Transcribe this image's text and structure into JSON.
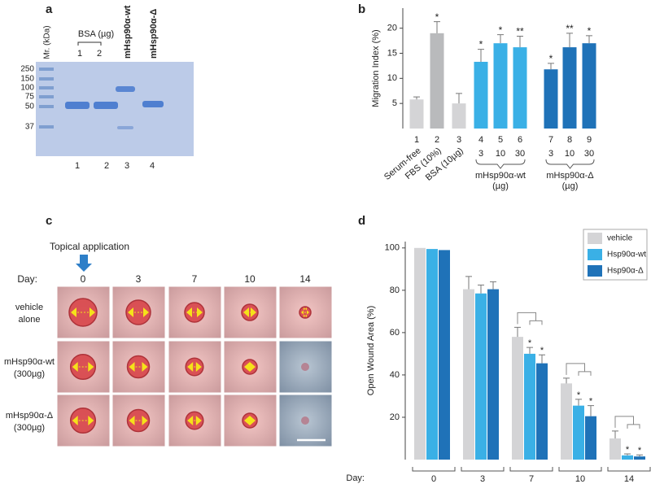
{
  "panel_a": {
    "letter": "a",
    "marker_label": "Mr. (kDa)",
    "markers": [
      250,
      150,
      100,
      75,
      50,
      37
    ],
    "bsa_label": "BSA (µg)",
    "bsa_amounts": [
      "1",
      "2"
    ],
    "lanes": [
      {
        "name": "mHsp90α-wt",
        "color": "#29a8e0"
      },
      {
        "name": "mHsp90α-Δ",
        "color": "#1e6db3"
      }
    ],
    "lane_numbers": [
      "1",
      "2",
      "3",
      "4"
    ]
  },
  "panel_c": {
    "letter": "c",
    "application_label": "Topical application",
    "day_label": "Day:",
    "days": [
      "0",
      "3",
      "7",
      "10",
      "14"
    ],
    "rows": [
      [
        "vehicle",
        "alone"
      ],
      [
        "mHsp90α-wt",
        "(300µg)"
      ],
      [
        "mHsp90α-Δ",
        "(300µg)"
      ]
    ]
  },
  "chart_data": [
    {
      "type": "bar",
      "letter": "b",
      "ylabel": "Migration Index (%)",
      "categories": [
        "1",
        "2",
        "3",
        "4",
        "5",
        "6",
        "7",
        "8",
        "9"
      ],
      "values": [
        5.8,
        19,
        5,
        13.3,
        17,
        16.2,
        11.8,
        16.2,
        17
      ],
      "errors": [
        0.5,
        2.3,
        2,
        2.5,
        1.7,
        2.2,
        1.2,
        2.8,
        1.5
      ],
      "colors": [
        "#d4d4d6",
        "#b9babc",
        "#d4d4d6",
        "#3ab0e6",
        "#3ab0e6",
        "#3ab0e6",
        "#1f72b8",
        "#1f72b8",
        "#1f72b8"
      ],
      "significance": [
        null,
        "*",
        null,
        "*",
        "*",
        "**",
        "*",
        "**",
        "*"
      ],
      "doses": [
        null,
        null,
        null,
        3,
        10,
        30,
        3,
        10,
        30
      ],
      "treatments": [
        "Serum-free",
        "FBS (10%)",
        "BSA (10µg)"
      ],
      "groups": [
        {
          "label": [
            "mHsp90α-wt",
            "(µg)"
          ],
          "color": "#3ab0e6"
        },
        {
          "label": [
            "mHsp90α-Δ",
            "(µg)"
          ],
          "color": "#1f72b8"
        }
      ],
      "ylim": [
        0,
        24
      ],
      "yticks": [
        5,
        10,
        15,
        20
      ]
    },
    {
      "type": "grouped_bar",
      "letter": "d",
      "ylabel": "Open Wound Area (%)",
      "x_label": "Day:",
      "categories": [
        "0",
        "3",
        "7",
        "10",
        "14"
      ],
      "series": [
        {
          "name": "vehicle",
          "color": "#d4d4d6",
          "values": [
            100,
            80.5,
            58,
            36,
            10
          ],
          "errors": [
            null,
            6,
            4.5,
            2.5,
            3.5
          ],
          "significance": [
            null,
            null,
            null,
            null,
            null
          ]
        },
        {
          "name": "Hsp90α-wt",
          "color": "#3ab0e6",
          "values": [
            99.5,
            78.5,
            50,
            25.5,
            2
          ],
          "errors": [
            null,
            4,
            3,
            3,
            0.7
          ],
          "significance": [
            null,
            null,
            "*",
            "*",
            "*"
          ]
        },
        {
          "name": "Hsp90α-Δ",
          "color": "#1f72b8",
          "values": [
            99,
            80.5,
            45.5,
            20.5,
            1.5
          ],
          "errors": [
            null,
            3.5,
            4,
            5,
            0.7
          ],
          "significance": [
            null,
            null,
            "*",
            "*",
            "*"
          ]
        }
      ],
      "ylim": [
        0,
        103
      ],
      "yticks": [
        20,
        40,
        60,
        80,
        100
      ],
      "legend": "top-right"
    }
  ]
}
